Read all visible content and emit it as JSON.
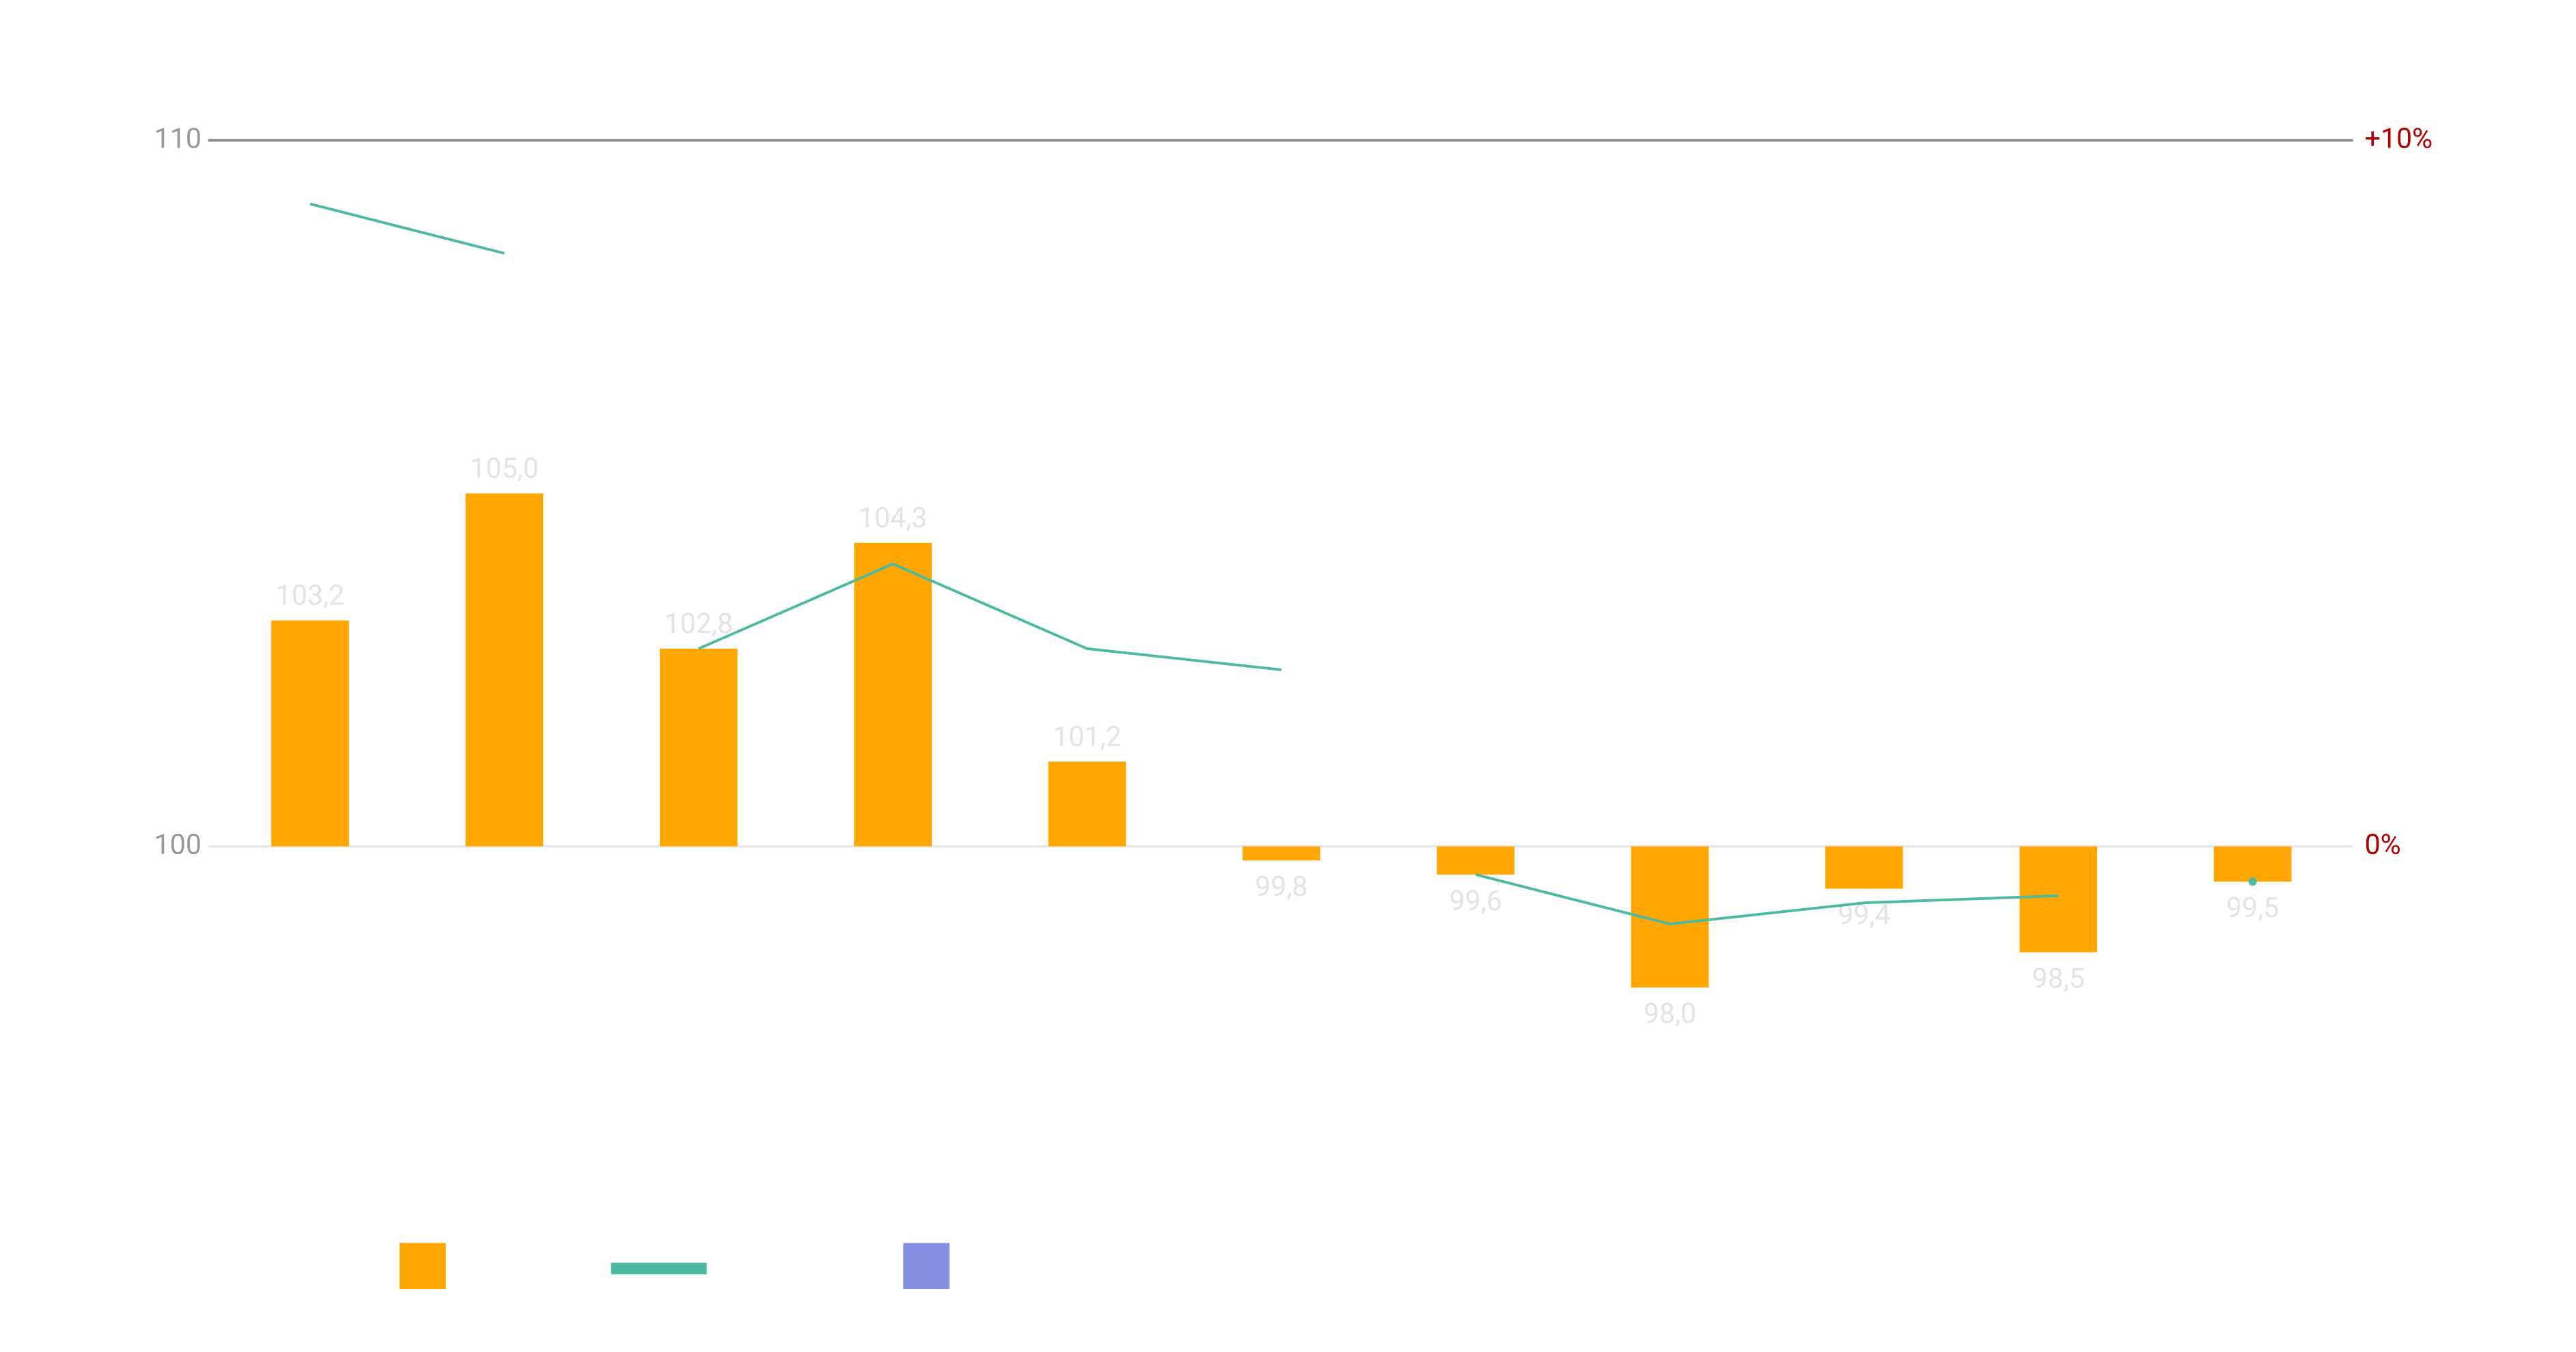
{
  "chart_data": {
    "type": "bar",
    "categories": [
      null,
      null,
      null,
      null,
      null,
      null,
      null,
      null,
      null,
      null,
      null
    ],
    "values": [
      103.2,
      105.0,
      102.8,
      104.3,
      101.2,
      99.8,
      99.6,
      98.0,
      99.4,
      98.5,
      99.5
    ],
    "value_labels": [
      "103,2",
      "105,0",
      "102,8",
      "104,3",
      "101,2",
      "99,8",
      "99,6",
      "98,0",
      "99,4",
      "98,5",
      "99,5"
    ],
    "color": "#ffa600",
    "bar_base": 100,
    "ylim": [
      97,
      110
    ],
    "yticks": [
      100,
      110
    ],
    "y2lim": [
      -3,
      10
    ],
    "y2ticks": [
      {
        "value": 0,
        "label": "0%"
      },
      {
        "value": 10,
        "label": "+10%"
      }
    ],
    "grid": true,
    "series": [
      {
        "type": "line",
        "axis": "y2",
        "color": "#4cb9a0",
        "values": [
          9.1,
          8.4,
          null,
          null,
          null,
          null,
          null,
          null,
          null,
          null,
          null
        ]
      },
      {
        "type": "line",
        "axis": "y2",
        "color": "#4cb9a0",
        "values": [
          null,
          null,
          2.8,
          4.0,
          2.8,
          2.5,
          null,
          null,
          null,
          null,
          null
        ]
      },
      {
        "type": "line",
        "axis": "y2",
        "color": "#4cb9a0",
        "values": [
          null,
          null,
          null,
          null,
          null,
          null,
          -0.4,
          -1.1,
          -0.8,
          -0.7,
          null
        ]
      },
      {
        "type": "line",
        "axis": "y2",
        "color": "#4cb9a0",
        "values": [
          null,
          null,
          null,
          null,
          null,
          null,
          null,
          null,
          null,
          null,
          -0.5
        ]
      }
    ],
    "legend": [
      {
        "shape": "square",
        "color": "#ffa600"
      },
      {
        "shape": "line",
        "color": "#4cb9a0"
      },
      {
        "shape": "square",
        "color": "#8790e0"
      }
    ]
  }
}
